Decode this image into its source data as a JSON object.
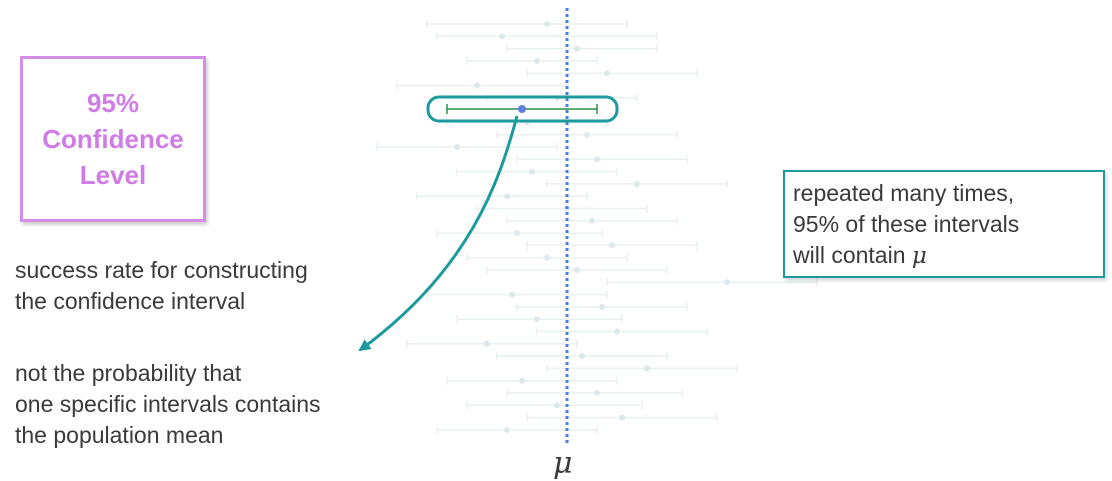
{
  "confidence_box": {
    "text": "95%\nConfidence\nLevel"
  },
  "notes": {
    "success_rate": "success rate for constructing\nthe confidence interval",
    "not_probability": "not the probability that\none specific intervals contains\nthe population mean"
  },
  "repeat_box": {
    "line1": "repeated many times,",
    "line2": "95% of these intervals",
    "line3_prefix": "will contain ",
    "line3_symbol": "μ"
  },
  "mu_label": "μ",
  "chart_data": {
    "type": "interval-plot",
    "description_units": "relative units, population mean μ at 0",
    "mu": 0,
    "highlighted": {
      "low": -1.2,
      "center": -0.45,
      "high": 0.3
    },
    "intervals": [
      {
        "low": -1.4,
        "center": -0.2,
        "high": 0.6
      },
      {
        "low": -1.3,
        "center": -0.65,
        "high": 0.9
      },
      {
        "low": -0.6,
        "center": 0.1,
        "high": 0.9
      },
      {
        "low": -1.0,
        "center": -0.3,
        "high": 0.3
      },
      {
        "low": -0.4,
        "center": 0.4,
        "high": 1.3
      },
      {
        "low": -1.7,
        "center": -0.9,
        "high": 0.0
      },
      {
        "low": -0.8,
        "center": -0.1,
        "high": 0.7
      },
      {
        "low": -0.3,
        "center": 0.6,
        "high": 1.5
      },
      {
        "low": -1.2,
        "center": -0.4,
        "high": 0.4
      },
      {
        "low": -0.7,
        "center": 0.2,
        "high": 1.1
      },
      {
        "low": -1.9,
        "center": -1.1,
        "high": -0.1
      },
      {
        "low": -0.5,
        "center": 0.3,
        "high": 1.2
      },
      {
        "low": -1.1,
        "center": -0.35,
        "high": 0.5
      },
      {
        "low": -0.2,
        "center": 0.7,
        "high": 1.6
      },
      {
        "low": -1.5,
        "center": -0.6,
        "high": 0.2
      },
      {
        "low": -0.9,
        "center": 0.0,
        "high": 0.8
      },
      {
        "low": -0.6,
        "center": 0.25,
        "high": 1.1
      },
      {
        "low": -1.3,
        "center": -0.5,
        "high": 0.35
      },
      {
        "low": -0.4,
        "center": 0.45,
        "high": 1.3
      },
      {
        "low": -1.0,
        "center": -0.2,
        "high": 0.6
      },
      {
        "low": -0.8,
        "center": 0.1,
        "high": 1.0
      },
      {
        "low": 0.4,
        "center": 1.6,
        "high": 2.5
      },
      {
        "low": -1.4,
        "center": -0.55,
        "high": 0.4
      },
      {
        "low": -0.5,
        "center": 0.35,
        "high": 1.2
      },
      {
        "low": -1.1,
        "center": -0.3,
        "high": 0.55
      },
      {
        "low": -0.3,
        "center": 0.5,
        "high": 1.4
      },
      {
        "low": -1.6,
        "center": -0.8,
        "high": 0.1
      },
      {
        "low": -0.7,
        "center": 0.15,
        "high": 1.0
      },
      {
        "low": -0.2,
        "center": 0.8,
        "high": 1.7
      },
      {
        "low": -1.2,
        "center": -0.45,
        "high": 0.5
      },
      {
        "low": -0.6,
        "center": 0.3,
        "high": 1.15
      },
      {
        "low": -1.0,
        "center": -0.1,
        "high": 0.75
      },
      {
        "low": -0.4,
        "center": 0.55,
        "high": 1.5
      },
      {
        "low": -1.3,
        "center": -0.6,
        "high": 0.3
      }
    ]
  }
}
